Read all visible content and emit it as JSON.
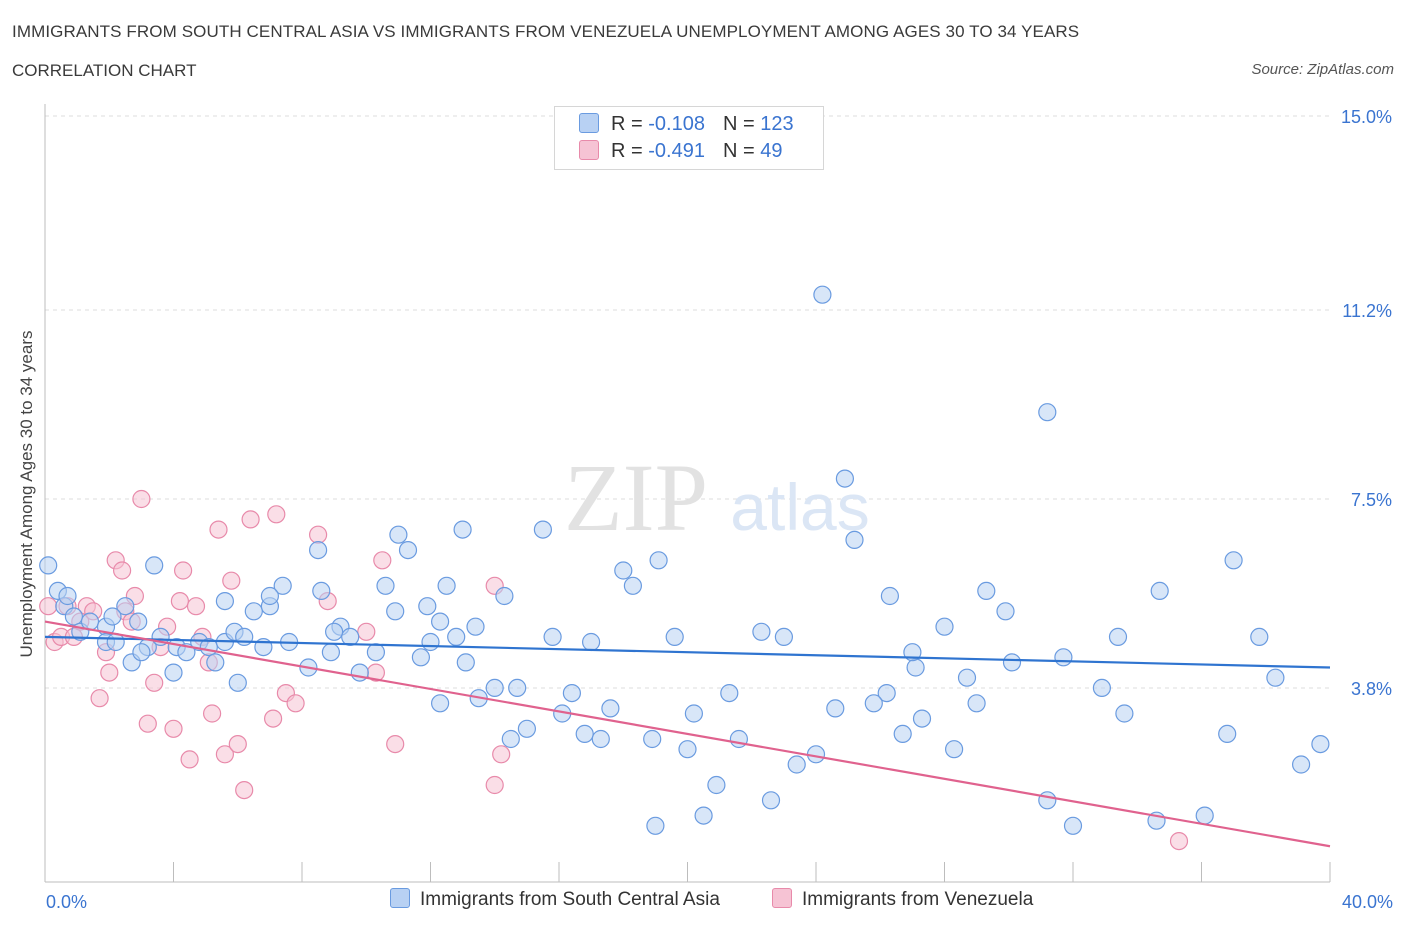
{
  "header": {
    "title": "IMMIGRANTS FROM SOUTH CENTRAL ASIA VS IMMIGRANTS FROM VENEZUELA UNEMPLOYMENT AMONG AGES 30 TO 34 YEARS",
    "subtitle": "CORRELATION CHART",
    "source": "Source: ZipAtlas.com"
  },
  "watermark": {
    "zip": "ZIP",
    "atlas": "atlas"
  },
  "legend": {
    "r_label": "R =",
    "n_label": "N =",
    "rows": [
      {
        "r": "-0.108",
        "n": "123"
      },
      {
        "r": "-0.491",
        "n": "49"
      }
    ]
  },
  "colors": {
    "blue_fill": "#b8d1f3",
    "blue_stroke": "#6a9be0",
    "blue_line": "#2f74d0",
    "pink_fill": "#f6c3d4",
    "pink_stroke": "#e88aaa",
    "pink_line": "#e0628e",
    "axis_text": "#3a74d0",
    "grid": "#dcdcdc"
  },
  "chart_data": {
    "type": "scatter",
    "title": "IMMIGRANTS FROM SOUTH CENTRAL ASIA VS IMMIGRANTS FROM VENEZUELA UNEMPLOYMENT AMONG AGES 30 TO 34 YEARS",
    "subtitle": "CORRELATION CHART",
    "xlabel": "",
    "ylabel": "Unemployment Among Ages 30 to 34 years",
    "xlim": [
      0,
      40
    ],
    "ylim": [
      0,
      15
    ],
    "x_tick_labels": [
      "0.0%",
      "40.0%"
    ],
    "y_ticks": [
      3.8,
      7.5,
      11.2,
      15.0
    ],
    "y_tick_labels": [
      "3.8%",
      "7.5%",
      "11.2%",
      "15.0%"
    ],
    "grid": true,
    "legend_position": "top-center",
    "series": [
      {
        "name": "Immigrants from South Central Asia",
        "color": "#6a9be0",
        "r": -0.108,
        "n": 123,
        "trend": [
          [
            0,
            4.8
          ],
          [
            40,
            4.2
          ]
        ],
        "points": [
          [
            0.1,
            6.2
          ],
          [
            0.4,
            5.7
          ],
          [
            0.6,
            5.4
          ],
          [
            0.9,
            5.2
          ],
          [
            1.1,
            4.9
          ],
          [
            0.7,
            5.6
          ],
          [
            1.4,
            5.1
          ],
          [
            1.9,
            5.0
          ],
          [
            1.9,
            4.7
          ],
          [
            2.5,
            5.4
          ],
          [
            2.1,
            5.2
          ],
          [
            2.9,
            5.1
          ],
          [
            3.4,
            6.2
          ],
          [
            2.7,
            4.3
          ],
          [
            3.2,
            4.6
          ],
          [
            3.6,
            4.8
          ],
          [
            4.1,
            4.6
          ],
          [
            4.4,
            4.5
          ],
          [
            4.8,
            4.7
          ],
          [
            5.1,
            4.6
          ],
          [
            5.3,
            4.3
          ],
          [
            5.6,
            4.7
          ],
          [
            5.9,
            4.9
          ],
          [
            6.2,
            4.8
          ],
          [
            6.5,
            5.3
          ],
          [
            6.8,
            4.6
          ],
          [
            7.0,
            5.4
          ],
          [
            7.4,
            5.8
          ],
          [
            7.6,
            4.7
          ],
          [
            8.2,
            4.2
          ],
          [
            8.6,
            5.7
          ],
          [
            8.5,
            6.5
          ],
          [
            8.9,
            4.5
          ],
          [
            9.2,
            5.0
          ],
          [
            9.5,
            4.8
          ],
          [
            9.8,
            4.1
          ],
          [
            10.3,
            4.5
          ],
          [
            10.6,
            5.8
          ],
          [
            10.9,
            5.3
          ],
          [
            11.3,
            6.5
          ],
          [
            11.7,
            4.4
          ],
          [
            12.0,
            4.7
          ],
          [
            11.9,
            5.4
          ],
          [
            12.3,
            5.1
          ],
          [
            12.5,
            5.8
          ],
          [
            12.8,
            4.8
          ],
          [
            13.1,
            4.3
          ],
          [
            13.4,
            5.0
          ],
          [
            14.0,
            3.8
          ],
          [
            14.3,
            5.6
          ],
          [
            14.7,
            3.8
          ],
          [
            13.5,
            3.6
          ],
          [
            14.5,
            2.8
          ],
          [
            15.0,
            3.0
          ],
          [
            15.5,
            6.9
          ],
          [
            16.1,
            3.3
          ],
          [
            16.8,
            2.9
          ],
          [
            17.3,
            2.8
          ],
          [
            17.6,
            3.4
          ],
          [
            18.3,
            5.8
          ],
          [
            18.9,
            2.8
          ],
          [
            19.1,
            6.3
          ],
          [
            19.6,
            4.8
          ],
          [
            20.2,
            3.3
          ],
          [
            20.5,
            1.3
          ],
          [
            20.9,
            1.9
          ],
          [
            21.3,
            3.7
          ],
          [
            21.6,
            2.8
          ],
          [
            22.3,
            4.9
          ],
          [
            22.6,
            1.6
          ],
          [
            23.0,
            4.8
          ],
          [
            23.4,
            2.3
          ],
          [
            24.0,
            2.5
          ],
          [
            24.6,
            3.4
          ],
          [
            24.9,
            7.9
          ],
          [
            25.2,
            6.7
          ],
          [
            26.3,
            5.6
          ],
          [
            26.7,
            2.9
          ],
          [
            27.3,
            3.2
          ],
          [
            28.0,
            5.0
          ],
          [
            28.3,
            2.6
          ],
          [
            28.7,
            4.0
          ],
          [
            29.0,
            3.5
          ],
          [
            29.3,
            5.7
          ],
          [
            29.9,
            5.3
          ],
          [
            31.2,
            1.6
          ],
          [
            31.7,
            4.4
          ],
          [
            33.6,
            3.3
          ],
          [
            34.6,
            1.2
          ],
          [
            36.1,
            1.3
          ],
          [
            37.0,
            6.3
          ],
          [
            38.3,
            4.0
          ],
          [
            39.7,
            2.7
          ],
          [
            39.1,
            2.3
          ],
          [
            37.8,
            4.8
          ],
          [
            36.8,
            2.9
          ],
          [
            34.7,
            5.7
          ],
          [
            33.4,
            4.8
          ],
          [
            32.9,
            3.8
          ],
          [
            31.2,
            9.2
          ],
          [
            30.1,
            4.3
          ],
          [
            27.1,
            4.2
          ],
          [
            24.2,
            11.5
          ],
          [
            26.2,
            3.7
          ],
          [
            25.8,
            3.5
          ],
          [
            27.0,
            4.5
          ],
          [
            32.0,
            1.1
          ],
          [
            20.0,
            2.6
          ],
          [
            18.0,
            6.1
          ],
          [
            17.0,
            4.7
          ],
          [
            16.4,
            3.7
          ],
          [
            15.8,
            4.8
          ],
          [
            13.0,
            6.9
          ],
          [
            12.3,
            3.5
          ],
          [
            11.0,
            6.8
          ],
          [
            9.0,
            4.9
          ],
          [
            7.0,
            5.6
          ],
          [
            5.6,
            5.5
          ],
          [
            4.0,
            4.1
          ],
          [
            3.0,
            4.5
          ],
          [
            2.2,
            4.7
          ],
          [
            6.0,
            3.9
          ],
          [
            19.0,
            1.1
          ]
        ]
      },
      {
        "name": "Immigrants from Venezuela",
        "color": "#e88aaa",
        "r": -0.491,
        "n": 49,
        "trend": [
          [
            0,
            5.1
          ],
          [
            40,
            0.7
          ]
        ],
        "points": [
          [
            0.1,
            5.4
          ],
          [
            0.3,
            4.7
          ],
          [
            0.5,
            4.8
          ],
          [
            0.7,
            5.4
          ],
          [
            0.9,
            4.8
          ],
          [
            1.1,
            5.1
          ],
          [
            1.3,
            5.4
          ],
          [
            1.5,
            5.3
          ],
          [
            1.7,
            3.6
          ],
          [
            1.9,
            4.5
          ],
          [
            2.0,
            4.1
          ],
          [
            2.2,
            6.3
          ],
          [
            2.4,
            6.1
          ],
          [
            2.5,
            5.3
          ],
          [
            2.7,
            5.1
          ],
          [
            2.8,
            5.6
          ],
          [
            3.0,
            7.5
          ],
          [
            3.2,
            3.1
          ],
          [
            3.4,
            3.9
          ],
          [
            3.6,
            4.6
          ],
          [
            3.8,
            5.0
          ],
          [
            4.0,
            3.0
          ],
          [
            4.2,
            5.5
          ],
          [
            4.3,
            6.1
          ],
          [
            4.5,
            2.4
          ],
          [
            4.7,
            5.4
          ],
          [
            4.9,
            4.8
          ],
          [
            5.1,
            4.3
          ],
          [
            5.2,
            3.3
          ],
          [
            5.4,
            6.9
          ],
          [
            5.6,
            2.5
          ],
          [
            5.8,
            5.9
          ],
          [
            6.0,
            2.7
          ],
          [
            6.2,
            1.8
          ],
          [
            6.4,
            7.1
          ],
          [
            7.1,
            3.2
          ],
          [
            7.2,
            7.2
          ],
          [
            7.5,
            3.7
          ],
          [
            7.8,
            3.5
          ],
          [
            8.5,
            6.8
          ],
          [
            8.8,
            5.5
          ],
          [
            10.0,
            4.9
          ],
          [
            10.3,
            4.1
          ],
          [
            10.5,
            6.3
          ],
          [
            10.9,
            2.7
          ],
          [
            14.0,
            5.8
          ],
          [
            14.2,
            2.5
          ],
          [
            14.0,
            1.9
          ],
          [
            35.3,
            0.8
          ]
        ]
      }
    ]
  },
  "bottom_legend": {
    "blue_label": "Immigrants from South Central Asia",
    "pink_label": "Immigrants from Venezuela"
  }
}
